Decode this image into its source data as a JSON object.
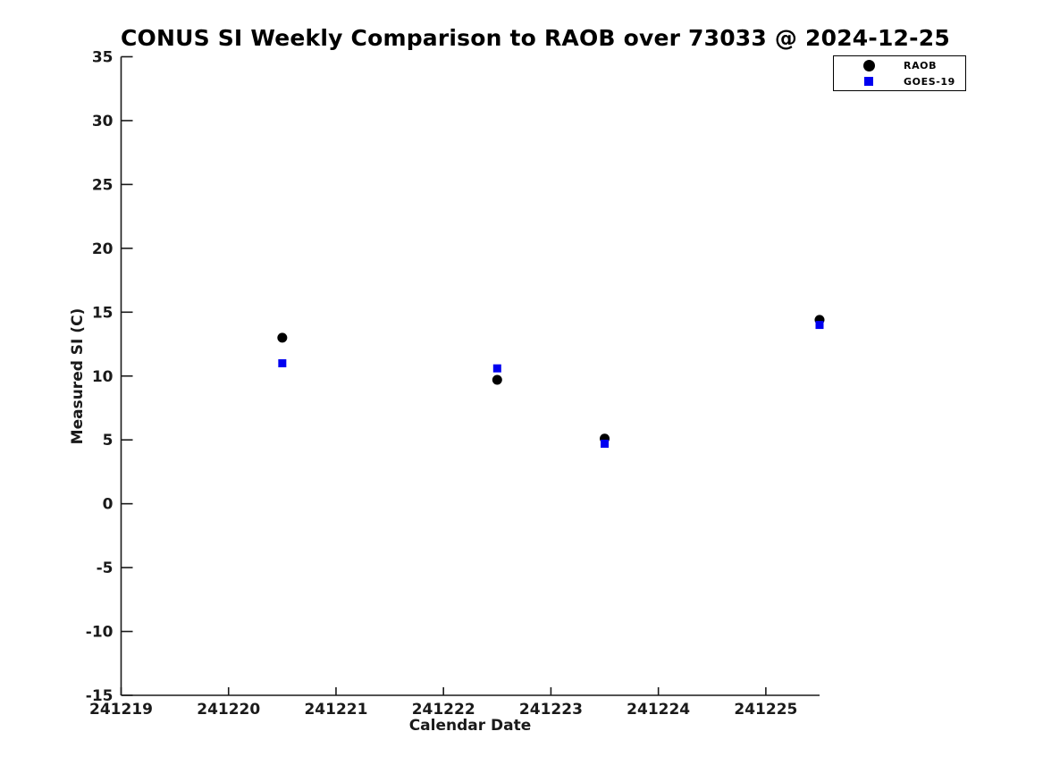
{
  "chart_data": {
    "type": "scatter",
    "title": "CONUS SI Weekly Comparison to RAOB over 73033 @ 2024-12-25",
    "xlabel": "Calendar Date",
    "ylabel": "Measured SI (C)",
    "xlim": [
      241219,
      241225.5
    ],
    "ylim": [
      -15,
      35
    ],
    "x_ticks": [
      241219,
      241220,
      241221,
      241222,
      241223,
      241224,
      241225
    ],
    "y_ticks": [
      -15,
      -10,
      -5,
      0,
      5,
      10,
      15,
      20,
      25,
      30,
      35
    ],
    "grid": false,
    "legend_position": "top-right",
    "axis_color": "#1a1a1a",
    "background_color": "#ffffff",
    "x": [
      241220.5,
      241222.5,
      241223.5,
      241225.5
    ],
    "series": [
      {
        "name": "RAOB",
        "marker": "circle",
        "color": "#000000",
        "values": [
          13.0,
          9.7,
          5.1,
          14.4
        ]
      },
      {
        "name": "GOES-19",
        "marker": "square",
        "color": "#0000f0",
        "values": [
          11.0,
          10.6,
          4.7,
          14.0
        ]
      }
    ]
  }
}
